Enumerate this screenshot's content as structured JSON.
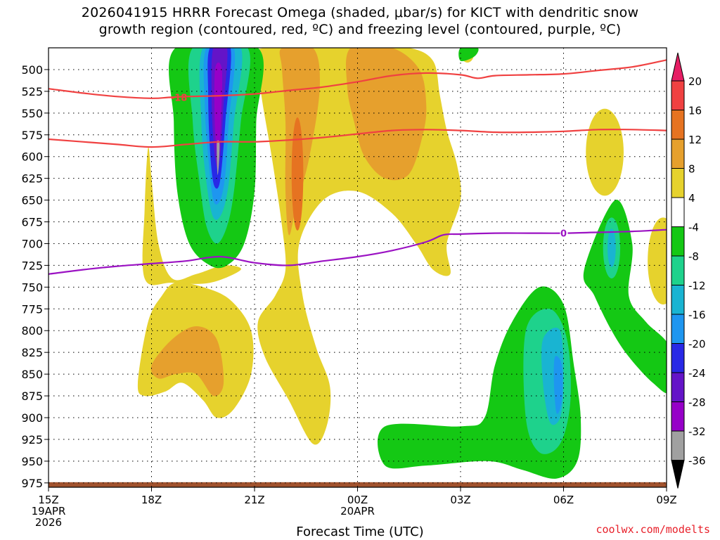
{
  "title": {
    "line1": "2026041915 HRRR Forecast Omega (shaded, μbar/s) for KICT with dendritic snow",
    "line2": "growth region (contoured, red, ºC) and freezing level (contoured, purple, ºC)"
  },
  "credit": "coolwx.com/modelts",
  "chart_data": {
    "type": "heatmap",
    "title": "2026041915 HRRR Forecast Omega (shaded, μbar/s) for KICT with dendritic snow growth region (contoured, red, ºC) and freezing level (contoured, purple, ºC)",
    "xlabel": "Forecast Time (UTC)",
    "ylabel": "",
    "y_axis": {
      "scale": "pressure (hPa), increasing downward",
      "ticks": [
        500,
        525,
        550,
        575,
        600,
        625,
        650,
        675,
        700,
        725,
        750,
        775,
        800,
        825,
        850,
        875,
        900,
        925,
        950,
        975
      ],
      "range": [
        475,
        980
      ]
    },
    "x_axis": {
      "ticks": [
        {
          "hours": 0,
          "label": "15Z",
          "sub": [
            "19APR",
            "2026"
          ]
        },
        {
          "hours": 3,
          "label": "18Z",
          "sub": []
        },
        {
          "hours": 6,
          "label": "21Z",
          "sub": []
        },
        {
          "hours": 9,
          "label": "00Z",
          "sub": [
            "20APR"
          ]
        },
        {
          "hours": 12,
          "label": "03Z",
          "sub": []
        },
        {
          "hours": 15,
          "label": "06Z",
          "sub": []
        },
        {
          "hours": 18,
          "label": "09Z",
          "sub": []
        }
      ],
      "range_hours": [
        0,
        18
      ]
    },
    "grid": true,
    "colorbar": {
      "ticks": [
        "20",
        "16",
        "12",
        "8",
        "4",
        "-4",
        "-8",
        "-12",
        "-16",
        "-20",
        "-24",
        "-28",
        "-32",
        "-36"
      ],
      "colors": [
        "#e61e64",
        "#f04141",
        "#e67321",
        "#e6a02d",
        "#e6d22d",
        "#ffffff",
        "#14c814",
        "#1ed28c",
        "#19b4d2",
        "#1e96f0",
        "#2828e6",
        "#6414c8",
        "#9600c8",
        "#a0a0a0",
        "#000000"
      ]
    },
    "contours": [
      {
        "label": "-18",
        "color": "#f04141",
        "points": [
          [
            0,
            522
          ],
          [
            1,
            527
          ],
          [
            2,
            531
          ],
          [
            3,
            533
          ],
          [
            3.5,
            532
          ],
          [
            4,
            531
          ],
          [
            5,
            530
          ],
          [
            6,
            528
          ],
          [
            7,
            524
          ],
          [
            8,
            520
          ],
          [
            9,
            514
          ],
          [
            10,
            507
          ],
          [
            11,
            504
          ],
          [
            12,
            506
          ],
          [
            12.5,
            510
          ],
          [
            13,
            507
          ],
          [
            14,
            506
          ],
          [
            15,
            505
          ],
          [
            16,
            501
          ],
          [
            17,
            497
          ],
          [
            18,
            489
          ]
        ]
      },
      {
        "label": "",
        "color": "#f04141",
        "points": [
          [
            0,
            580
          ],
          [
            1,
            583
          ],
          [
            2,
            586
          ],
          [
            3,
            589
          ],
          [
            4,
            586
          ],
          [
            5,
            583
          ],
          [
            6,
            583
          ],
          [
            7,
            581
          ],
          [
            8,
            578
          ],
          [
            9,
            574
          ],
          [
            10,
            570
          ],
          [
            11,
            569
          ],
          [
            12,
            570
          ],
          [
            13,
            572
          ],
          [
            14,
            572
          ],
          [
            15,
            571
          ],
          [
            16,
            569
          ],
          [
            17,
            569
          ],
          [
            18,
            570
          ]
        ]
      },
      {
        "label": "0",
        "color": "#9b12c3",
        "points": [
          [
            0,
            735
          ],
          [
            1,
            730
          ],
          [
            2,
            726
          ],
          [
            3,
            723
          ],
          [
            4,
            720
          ],
          [
            5,
            715
          ],
          [
            6,
            722
          ],
          [
            7,
            725
          ],
          [
            8,
            720
          ],
          [
            9,
            715
          ],
          [
            10,
            708
          ],
          [
            11,
            698
          ],
          [
            11.5,
            690
          ],
          [
            12,
            689
          ],
          [
            13,
            688
          ],
          [
            14,
            688
          ],
          [
            15,
            688
          ],
          [
            16,
            687
          ],
          [
            17,
            686
          ],
          [
            18,
            684
          ]
        ]
      }
    ],
    "contour_labels": [
      {
        "text": "-18",
        "hours": 3.8,
        "pressure": 532
      },
      {
        "text": "0",
        "hours": 15.0,
        "pressure": 688
      }
    ],
    "surface": {
      "color": "#a0522d",
      "pressure": 975
    }
  }
}
